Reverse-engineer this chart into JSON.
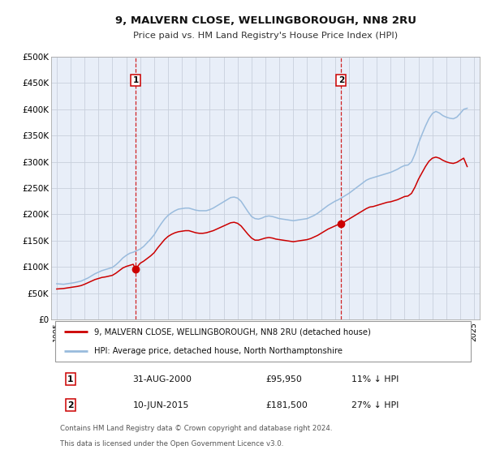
{
  "title": "9, MALVERN CLOSE, WELLINGBOROUGH, NN8 2RU",
  "subtitle": "Price paid vs. HM Land Registry's House Price Index (HPI)",
  "ylim": [
    0,
    500000
  ],
  "yticks": [
    0,
    50000,
    100000,
    150000,
    200000,
    250000,
    300000,
    350000,
    400000,
    450000,
    500000
  ],
  "ytick_labels": [
    "£0",
    "£50K",
    "£100K",
    "£150K",
    "£200K",
    "£250K",
    "£300K",
    "£350K",
    "£400K",
    "£450K",
    "£500K"
  ],
  "xlim_start": 1994.6,
  "xlim_end": 2025.4,
  "figure_bg_color": "#ffffff",
  "plot_bg_color": "#e8eef8",
  "grid_color": "#c8d0dc",
  "hpi_line_color": "#99bbdd",
  "price_line_color": "#cc0000",
  "vline_color": "#cc0000",
  "sale1_x": 2000.667,
  "sale1_y": 95950,
  "sale1_label": "1",
  "sale2_x": 2015.44,
  "sale2_y": 181500,
  "sale2_label": "2",
  "legend_label1": "9, MALVERN CLOSE, WELLINGBOROUGH, NN8 2RU (detached house)",
  "legend_label2": "HPI: Average price, detached house, North Northamptonshire",
  "table_row1": [
    "1",
    "31-AUG-2000",
    "£95,950",
    "11% ↓ HPI"
  ],
  "table_row2": [
    "2",
    "10-JUN-2015",
    "£181,500",
    "27% ↓ HPI"
  ],
  "footer1": "Contains HM Land Registry data © Crown copyright and database right 2024.",
  "footer2": "This data is licensed under the Open Government Licence v3.0.",
  "hpi_data_x": [
    1995.0,
    1995.25,
    1995.5,
    1995.75,
    1996.0,
    1996.25,
    1996.5,
    1996.75,
    1997.0,
    1997.25,
    1997.5,
    1997.75,
    1998.0,
    1998.25,
    1998.5,
    1998.75,
    1999.0,
    1999.25,
    1999.5,
    1999.75,
    2000.0,
    2000.25,
    2000.5,
    2000.75,
    2001.0,
    2001.25,
    2001.5,
    2001.75,
    2002.0,
    2002.25,
    2002.5,
    2002.75,
    2003.0,
    2003.25,
    2003.5,
    2003.75,
    2004.0,
    2004.25,
    2004.5,
    2004.75,
    2005.0,
    2005.25,
    2005.5,
    2005.75,
    2006.0,
    2006.25,
    2006.5,
    2006.75,
    2007.0,
    2007.25,
    2007.5,
    2007.75,
    2008.0,
    2008.25,
    2008.5,
    2008.75,
    2009.0,
    2009.25,
    2009.5,
    2009.75,
    2010.0,
    2010.25,
    2010.5,
    2010.75,
    2011.0,
    2011.25,
    2011.5,
    2011.75,
    2012.0,
    2012.25,
    2012.5,
    2012.75,
    2013.0,
    2013.25,
    2013.5,
    2013.75,
    2014.0,
    2014.25,
    2014.5,
    2014.75,
    2015.0,
    2015.25,
    2015.5,
    2015.75,
    2016.0,
    2016.25,
    2016.5,
    2016.75,
    2017.0,
    2017.25,
    2017.5,
    2017.75,
    2018.0,
    2018.25,
    2018.5,
    2018.75,
    2019.0,
    2019.25,
    2019.5,
    2019.75,
    2020.0,
    2020.25,
    2020.5,
    2020.75,
    2021.0,
    2021.25,
    2021.5,
    2021.75,
    2022.0,
    2022.25,
    2022.5,
    2022.75,
    2023.0,
    2023.25,
    2023.5,
    2023.75,
    2024.0,
    2024.25,
    2024.5
  ],
  "hpi_data_y": [
    68000,
    67500,
    67000,
    68000,
    69000,
    70000,
    71500,
    73000,
    76000,
    79000,
    83000,
    87000,
    90000,
    93000,
    95000,
    97000,
    99000,
    104000,
    110000,
    117000,
    122000,
    126000,
    128000,
    131000,
    134000,
    139000,
    146000,
    153000,
    161000,
    172000,
    182000,
    191000,
    198000,
    203000,
    207000,
    210000,
    211000,
    212000,
    212000,
    210000,
    208000,
    207000,
    207000,
    207000,
    209000,
    212000,
    216000,
    220000,
    224000,
    228000,
    232000,
    233000,
    231000,
    225000,
    215000,
    205000,
    196000,
    192000,
    191000,
    193000,
    196000,
    197000,
    196000,
    194000,
    192000,
    191000,
    190000,
    189000,
    188000,
    189000,
    190000,
    191000,
    192000,
    195000,
    198000,
    202000,
    207000,
    212000,
    217000,
    221000,
    225000,
    228000,
    232000,
    236000,
    240000,
    245000,
    250000,
    255000,
    260000,
    265000,
    268000,
    270000,
    272000,
    274000,
    276000,
    278000,
    280000,
    283000,
    286000,
    290000,
    293000,
    294000,
    300000,
    315000,
    335000,
    352000,
    368000,
    382000,
    392000,
    396000,
    393000,
    388000,
    385000,
    383000,
    382000,
    385000,
    392000,
    400000,
    402000
  ],
  "price_data_x": [
    1995.0,
    1995.25,
    1995.5,
    1995.75,
    1996.0,
    1996.25,
    1996.5,
    1996.75,
    1997.0,
    1997.25,
    1997.5,
    1997.75,
    1998.0,
    1998.25,
    1998.5,
    1998.75,
    1999.0,
    1999.25,
    1999.5,
    1999.75,
    2000.0,
    2000.25,
    2000.5,
    2000.667,
    2001.0,
    2001.25,
    2001.5,
    2001.75,
    2002.0,
    2002.25,
    2002.5,
    2002.75,
    2003.0,
    2003.25,
    2003.5,
    2003.75,
    2004.0,
    2004.25,
    2004.5,
    2004.75,
    2005.0,
    2005.25,
    2005.5,
    2005.75,
    2006.0,
    2006.25,
    2006.5,
    2006.75,
    2007.0,
    2007.25,
    2007.5,
    2007.75,
    2008.0,
    2008.25,
    2008.5,
    2008.75,
    2009.0,
    2009.25,
    2009.5,
    2009.75,
    2010.0,
    2010.25,
    2010.5,
    2010.75,
    2011.0,
    2011.25,
    2011.5,
    2011.75,
    2012.0,
    2012.25,
    2012.5,
    2012.75,
    2013.0,
    2013.25,
    2013.5,
    2013.75,
    2014.0,
    2014.25,
    2014.5,
    2014.75,
    2015.0,
    2015.25,
    2015.44,
    2015.75,
    2016.0,
    2016.25,
    2016.5,
    2016.75,
    2017.0,
    2017.25,
    2017.5,
    2017.75,
    2018.0,
    2018.25,
    2018.5,
    2018.75,
    2019.0,
    2019.25,
    2019.5,
    2019.75,
    2020.0,
    2020.25,
    2020.5,
    2020.75,
    2021.0,
    2021.25,
    2021.5,
    2021.75,
    2022.0,
    2022.25,
    2022.5,
    2022.75,
    2023.0,
    2023.25,
    2023.5,
    2023.75,
    2024.0,
    2024.25,
    2024.5
  ],
  "price_data_y": [
    58000,
    58500,
    59000,
    60000,
    61000,
    62000,
    63000,
    64500,
    67000,
    70000,
    73000,
    76000,
    78000,
    80000,
    81000,
    82500,
    84000,
    88000,
    93000,
    98000,
    101000,
    103000,
    105000,
    95950,
    107000,
    111000,
    116000,
    121000,
    127000,
    136000,
    144000,
    152000,
    158000,
    162000,
    165000,
    167000,
    168000,
    169000,
    169000,
    167000,
    165000,
    164000,
    164000,
    165000,
    167000,
    169000,
    172000,
    175000,
    178000,
    181000,
    184000,
    185000,
    183000,
    178000,
    170000,
    162000,
    155000,
    151000,
    151000,
    153000,
    155000,
    156000,
    155000,
    153000,
    152000,
    151000,
    150000,
    149000,
    148000,
    149000,
    150000,
    151000,
    152000,
    154000,
    157000,
    160000,
    164000,
    168000,
    172000,
    175000,
    178000,
    181000,
    181500,
    187000,
    191000,
    195000,
    199000,
    203000,
    207000,
    211000,
    214000,
    215000,
    217000,
    219000,
    221000,
    223000,
    224000,
    226000,
    228000,
    231000,
    234000,
    235000,
    240000,
    252000,
    267000,
    279000,
    291000,
    301000,
    307000,
    309000,
    307000,
    303000,
    300000,
    298000,
    297000,
    299000,
    303000,
    307000,
    291000
  ]
}
